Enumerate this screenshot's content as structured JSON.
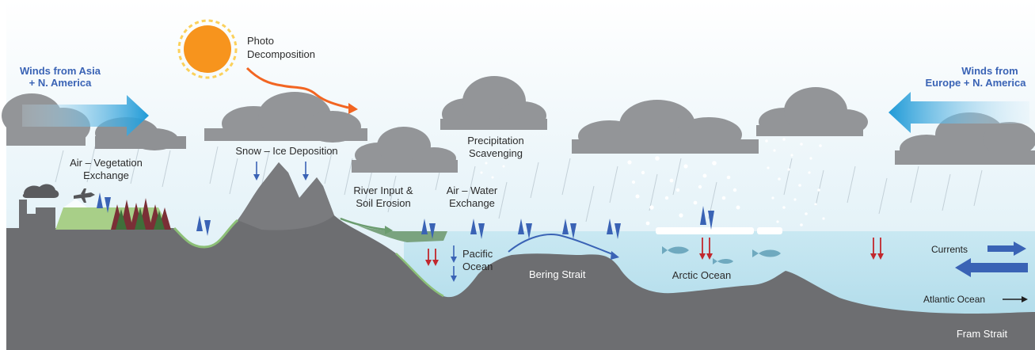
{
  "labels": {
    "photo_1": "Photo",
    "photo_2": "Decomposition",
    "winds_asia_1": "Winds from Asia",
    "winds_asia_2": "+ N. America",
    "winds_europe_1": "Winds from",
    "winds_europe_2": "Europe + N. America",
    "air_veg_1": "Air – Vegetation",
    "air_veg_2": "Exchange",
    "snow_ice": "Snow – Ice Deposition",
    "precip_1": "Precipitation",
    "precip_2": "Scavenging",
    "river_1": "River Input &",
    "river_2": "Soil Erosion",
    "air_water_1": "Air – Water",
    "air_water_2": "Exchange",
    "pacific_1": "Pacific",
    "pacific_2": "Ocean",
    "bering": "Bering Strait",
    "arctic": "Arctic Ocean",
    "currents": "Currents",
    "atlantic": "Atlantic Ocean",
    "fram": "Fram Strait"
  },
  "colors": {
    "sky_top": "#ffffff",
    "sky_bottom": "#dbeef6",
    "land": "#6d6e71",
    "ocean": "#bfe3ef",
    "cloud": "#939598",
    "arrow_blue": "#3a63b5",
    "arrow_red": "#c1272d",
    "sun": "#f7941d",
    "sun_ring": "#fbd15b",
    "vegetation": "#9bc27a",
    "forest": "#7a2f36"
  }
}
